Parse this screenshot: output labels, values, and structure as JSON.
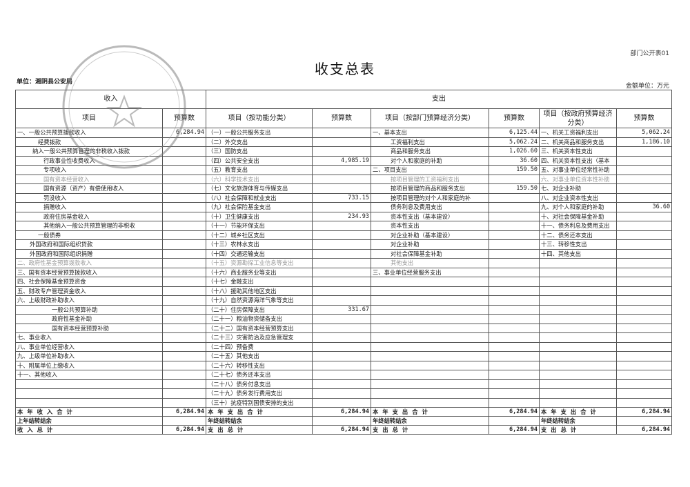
{
  "header": {
    "doc_code": "部门公开表01",
    "title": "收支总表",
    "unit": "单位：湘阴县公安局",
    "amount_unit": "金额单位：万元"
  },
  "stamp": {
    "text": "湘阴县公安局"
  },
  "table": {
    "group_headers": {
      "income": "收入",
      "expense": "支出"
    },
    "column_headers": [
      "项目",
      "预算数",
      "项目（按功能分类）",
      "预算数",
      "项目（按部门预算经济分类）",
      "预算数",
      "项目（按政府预算经济分类）",
      "预算数"
    ],
    "income": [
      [
        "一、一般公共预算拨款收入",
        "6,284.94"
      ],
      [
        "经费拨款",
        ""
      ],
      [
        "纳入一般公共预算管理的非税收入拨款",
        ""
      ],
      [
        "行政事业性收费收入",
        ""
      ],
      [
        "专项收入",
        ""
      ],
      [
        "国有资本经营收入",
        ""
      ],
      [
        "国有资源（资产）有偿使用收入",
        ""
      ],
      [
        "罚没收入",
        ""
      ],
      [
        "捐赠收入",
        ""
      ],
      [
        "政府住房基金收入",
        ""
      ],
      [
        "其他纳入一般公共预算管理的非税收",
        ""
      ],
      [
        "一般债券",
        ""
      ],
      [
        "外国政府和国际组织贷款",
        ""
      ],
      [
        "外国政府和国际组织捐赠",
        ""
      ],
      [
        "二、政府性基金预算拨款收入",
        ""
      ],
      [
        "三、国有资本经营预算拨款收入",
        ""
      ],
      [
        "四、社会保障基金预算资金",
        ""
      ],
      [
        "五、财政专户管理资金收入",
        ""
      ],
      [
        "六、上级财政补助收入",
        ""
      ],
      [
        "一般公共预算补助",
        ""
      ],
      [
        "政府性基金补助",
        ""
      ],
      [
        "国有资本经营预算补助",
        ""
      ],
      [
        "七、事业收入",
        ""
      ],
      [
        "八、事业单位经营收入",
        ""
      ],
      [
        "九、上级单位补助收入",
        ""
      ],
      [
        "十、附属单位上缴收入",
        ""
      ],
      [
        "十一、其他收入",
        ""
      ],
      [
        "",
        ""
      ],
      [
        "",
        ""
      ],
      [
        "",
        ""
      ]
    ],
    "functional": [
      [
        "（一）一般公共服务支出",
        ""
      ],
      [
        "（二）外交支出",
        ""
      ],
      [
        "（三）国防支出",
        ""
      ],
      [
        "（四）公共安全支出",
        "4,985.19"
      ],
      [
        "（五）教育支出",
        ""
      ],
      [
        "（六）科学技术支出",
        ""
      ],
      [
        "（七）文化旅游体育与传媒支出",
        ""
      ],
      [
        "（八）社会保障和就业支出",
        "733.15"
      ],
      [
        "（九）社会保险基金支出",
        ""
      ],
      [
        "（十）卫生健康支出",
        "234.93"
      ],
      [
        "（十一）节能环保支出",
        ""
      ],
      [
        "（十二）城乡社区支出",
        ""
      ],
      [
        "（十三）农林水支出",
        ""
      ],
      [
        "（十四）交通运输支出",
        ""
      ],
      [
        "（十五）资源勘探工业信息等支出",
        ""
      ],
      [
        "（十六）商业服务业等支出",
        ""
      ],
      [
        "（十七）金融支出",
        ""
      ],
      [
        "（十八）援助其他地区支出",
        ""
      ],
      [
        "（十九）自然资源海洋气象等支出",
        ""
      ],
      [
        "（二十）住房保障支出",
        "331.67"
      ],
      [
        "（二十一）粮油物资储备支出",
        ""
      ],
      [
        "（二十二）国有资本经营预算支出",
        ""
      ],
      [
        "（二十三）灾害防治及应急管理支",
        ""
      ],
      [
        "（二十四）预备费",
        ""
      ],
      [
        "（二十五）其他支出",
        ""
      ],
      [
        "（二十六）转移性支出",
        ""
      ],
      [
        "（二十七）债务还本支出",
        ""
      ],
      [
        "（二十八）债务付息支出",
        ""
      ],
      [
        "（二十九）债务发行费用支出",
        ""
      ],
      [
        "（三十）抗疫特别国债安排的支出",
        ""
      ]
    ],
    "dept_economic": [
      [
        "一、基本支出",
        "6,125.44"
      ],
      [
        "工资福利支出",
        "5,062.24"
      ],
      [
        "商品和服务支出",
        "1,026.60"
      ],
      [
        "对个人和家庭的补助",
        "36.60"
      ],
      [
        "二、项目支出",
        "159.50"
      ],
      [
        "按项目管理的工资福利支出",
        ""
      ],
      [
        "按项目管理的商品和服务支出",
        "159.50"
      ],
      [
        "按项目管理的对个人和家庭的补",
        ""
      ],
      [
        "债务利息及费用支出",
        ""
      ],
      [
        "资本性支出（基本建设）",
        ""
      ],
      [
        "资本性支出",
        ""
      ],
      [
        "对企业补助（基本建设）",
        ""
      ],
      [
        "对企业补助",
        ""
      ],
      [
        "对社会保障基金补助",
        ""
      ],
      [
        "其他支出",
        ""
      ],
      [
        "三、事业单位经营服务支出",
        ""
      ]
    ],
    "gov_economic": [
      [
        "一、机关工资福利支出",
        "5,062.24"
      ],
      [
        "二、机关商品和服务支出",
        "1,186.10"
      ],
      [
        "三、机关资本性支出",
        ""
      ],
      [
        "四、机关资本性支出（基本",
        ""
      ],
      [
        "五、对事业单位经常性补助",
        ""
      ],
      [
        "六、对事业单位资本性补助",
        ""
      ],
      [
        "七、对企业补助",
        ""
      ],
      [
        "八、对企业资本性支出",
        ""
      ],
      [
        "九、对个人和家庭的补助",
        "36.60"
      ],
      [
        "十、对社会保障基金补助",
        ""
      ],
      [
        "十一、债务利息及费用支出",
        ""
      ],
      [
        "十二、债务还本支出",
        ""
      ],
      [
        "十三、转移性支出",
        ""
      ],
      [
        "十四、其他支出",
        ""
      ]
    ],
    "totals": [
      [
        "本年收入合计",
        "6,284.94",
        "本年支出合计",
        "6,284.94",
        "本年支出合计",
        "6,284.94",
        "本年支出合计",
        "6,284.94"
      ],
      [
        "上年结转结余",
        "",
        "年终结转结余",
        "",
        "年终结转结余",
        "",
        "年终结转结余",
        ""
      ],
      [
        "收入总计",
        "6,284.94",
        "支出总计",
        "6,284.94",
        "支出总计",
        "6,284.94",
        "支出总计",
        "6,284.94"
      ]
    ]
  }
}
